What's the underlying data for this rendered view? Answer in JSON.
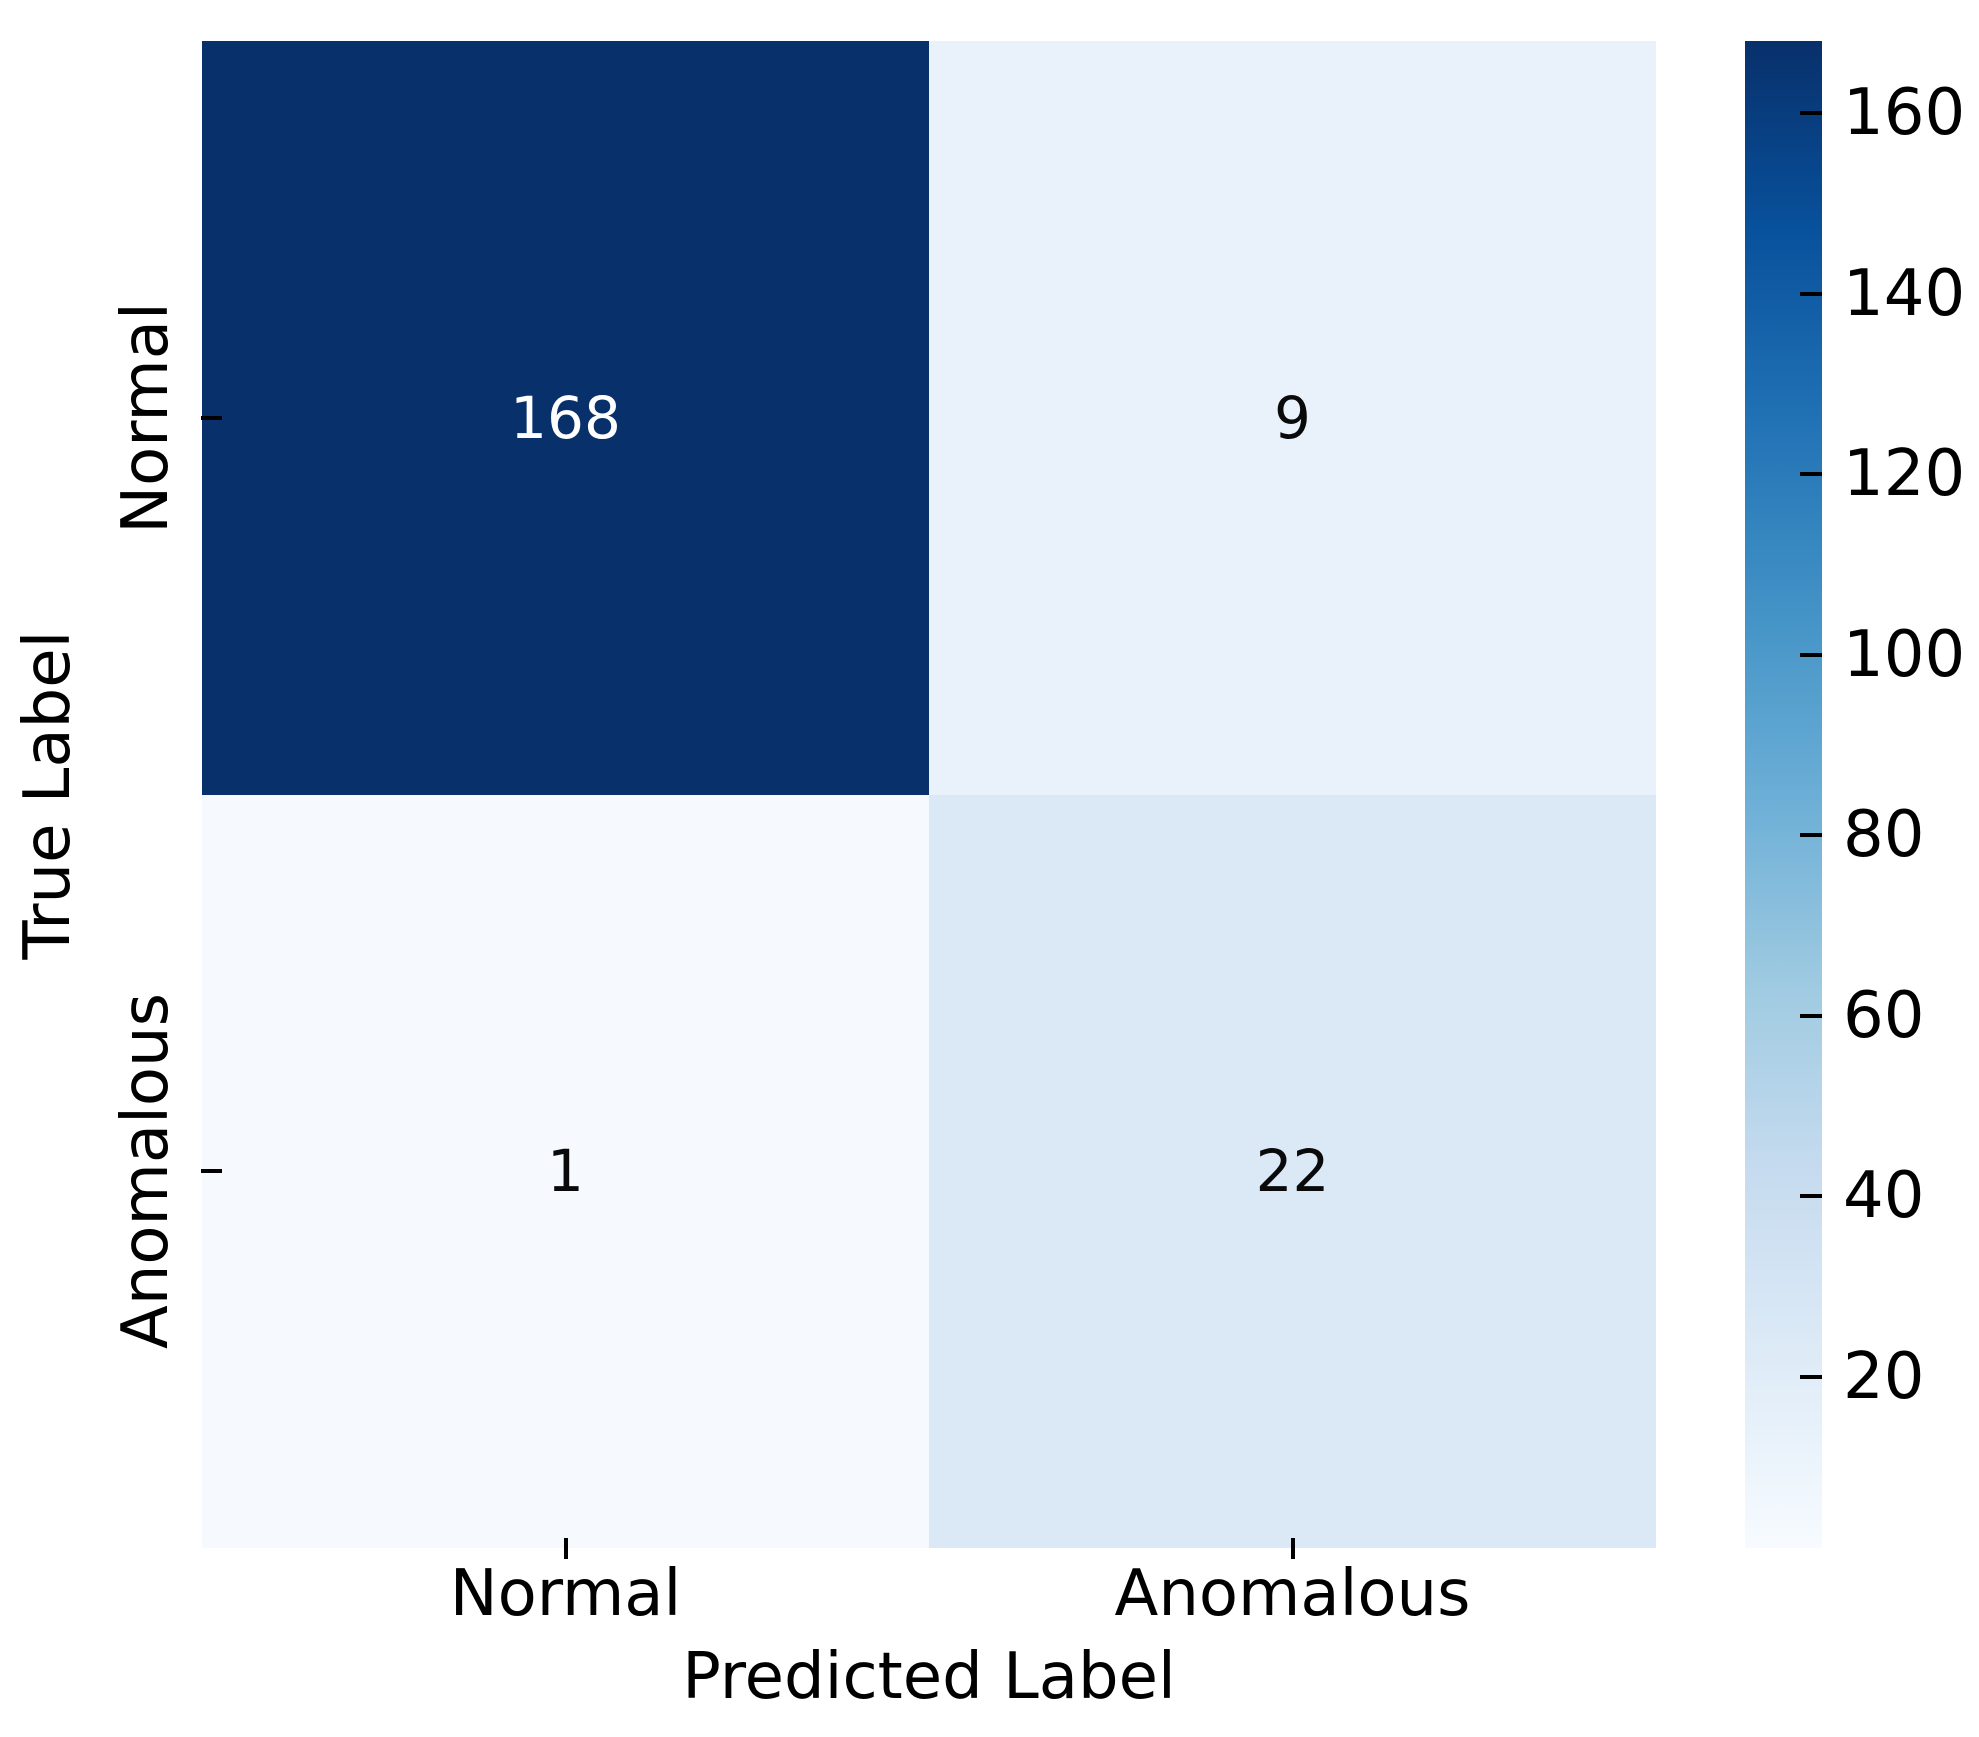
{
  "chart_data": {
    "type": "heatmap",
    "title": "",
    "xlabel": "Predicted Label",
    "ylabel": "True Label",
    "x_categories": [
      "Normal",
      "Anomalous"
    ],
    "y_categories": [
      "Normal",
      "Anomalous"
    ],
    "values": [
      [
        168,
        9
      ],
      [
        1,
        22
      ]
    ],
    "cell_colors": [
      [
        "#08306b",
        "#e9f1fa"
      ],
      [
        "#f6fafe",
        "#dbe9f6"
      ]
    ],
    "cell_text_colors": [
      [
        "#ffffff",
        "#0a0a0a"
      ],
      [
        "#0a0a0a",
        "#0a0a0a"
      ]
    ],
    "colormap": "Blues",
    "grid": false,
    "legend_position": "right-colorbar",
    "colorbar": {
      "vmin": 1,
      "vmax": 168,
      "ticks": [
        20,
        40,
        60,
        80,
        100,
        120,
        140,
        160
      ],
      "gradient_top_to_bottom": [
        "#08306b",
        "#08519c",
        "#2171b5",
        "#4292c6",
        "#6baed6",
        "#9ecae1",
        "#c6dbef",
        "#deebf7",
        "#f7fbff"
      ]
    }
  }
}
